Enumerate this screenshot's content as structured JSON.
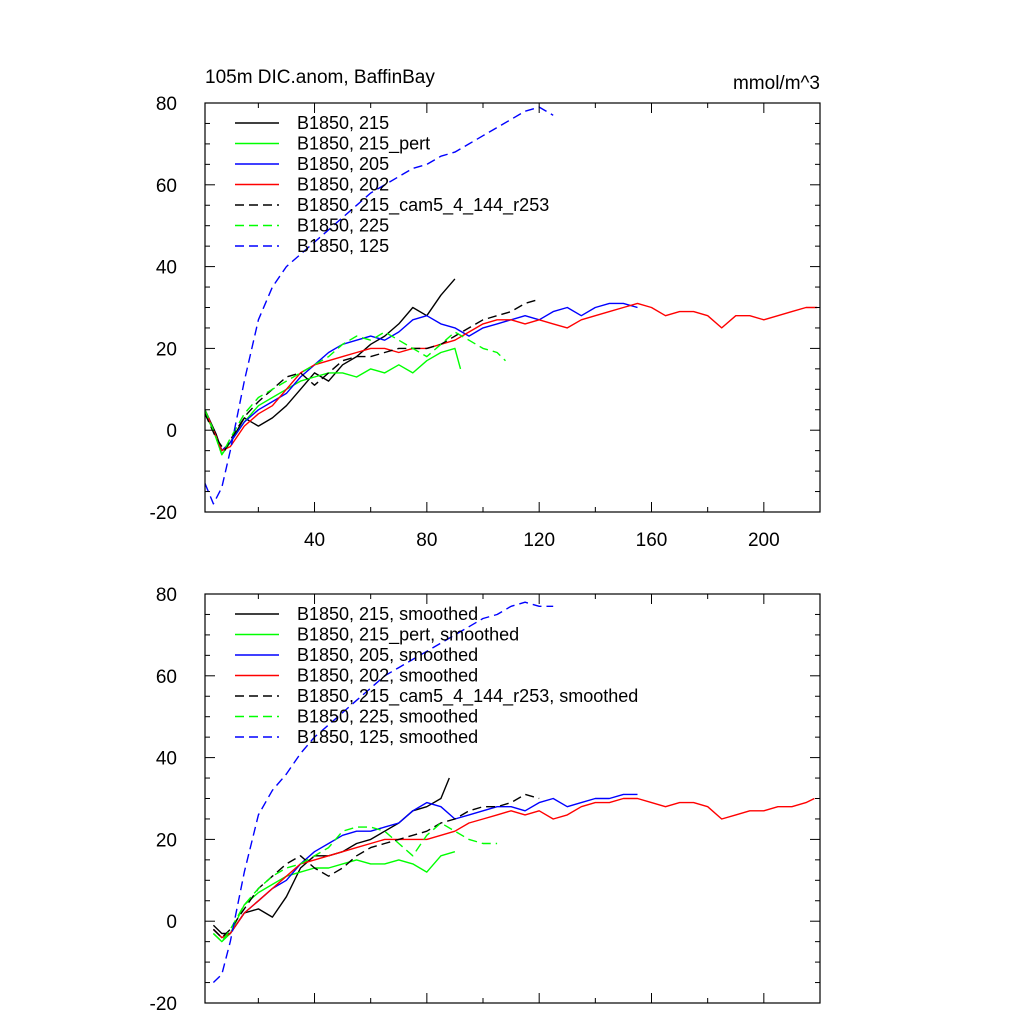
{
  "chart_data": [
    {
      "type": "line",
      "title": "105m DIC.anom, BaffinBay",
      "units": "mmol/m^3",
      "xlim": [
        1,
        220
      ],
      "ylim": [
        -20,
        80
      ],
      "xticks": [
        40,
        80,
        120,
        160,
        200
      ],
      "xtick_labels": [
        "40",
        "80",
        "120",
        "160",
        "200"
      ],
      "yticks": [
        -20,
        0,
        20,
        40,
        60,
        80
      ],
      "ytick_labels": [
        "-20",
        "0",
        "20",
        "40",
        "60",
        "80"
      ],
      "legend_position": "top-left",
      "series": [
        {
          "name": "B1850, 215",
          "color": "#000000",
          "dash": "solid",
          "x": [
            1,
            5,
            7,
            10,
            15,
            20,
            25,
            30,
            35,
            40,
            45,
            50,
            55,
            60,
            65,
            70,
            75,
            80,
            85,
            90
          ],
          "y": [
            5,
            -1,
            -5,
            -3,
            3,
            1,
            3,
            6,
            10,
            14,
            12,
            16,
            18,
            21,
            23,
            26,
            30,
            28,
            33,
            37
          ]
        },
        {
          "name": "B1850, 215_pert",
          "color": "#00ff00",
          "dash": "solid",
          "x": [
            1,
            4,
            7,
            10,
            15,
            20,
            25,
            30,
            35,
            40,
            45,
            50,
            55,
            60,
            65,
            70,
            75,
            80,
            85,
            90,
            92
          ],
          "y": [
            4,
            0,
            -6,
            -3,
            2,
            6,
            8,
            10,
            12,
            13,
            14,
            14,
            13,
            15,
            14,
            16,
            14,
            17,
            19,
            20,
            15
          ]
        },
        {
          "name": "B1850, 205",
          "color": "#0000ff",
          "dash": "solid",
          "x": [
            1,
            4,
            7,
            10,
            15,
            20,
            25,
            30,
            35,
            40,
            45,
            50,
            55,
            60,
            65,
            70,
            75,
            80,
            85,
            90,
            95,
            100,
            105,
            110,
            115,
            120,
            125,
            130,
            135,
            140,
            145,
            150,
            155
          ],
          "y": [
            5,
            0,
            -5,
            -3,
            2,
            5,
            7,
            9,
            13,
            16,
            19,
            21,
            22,
            23,
            22,
            24,
            27,
            28,
            26,
            25,
            23,
            25,
            26,
            27,
            28,
            27,
            29,
            30,
            28,
            30,
            31,
            31,
            30
          ]
        },
        {
          "name": "B1850, 202",
          "color": "#ff0000",
          "dash": "solid",
          "x": [
            1,
            4,
            7,
            10,
            15,
            20,
            25,
            30,
            35,
            40,
            45,
            50,
            55,
            60,
            65,
            70,
            75,
            80,
            85,
            90,
            95,
            100,
            105,
            110,
            115,
            120,
            125,
            130,
            135,
            140,
            145,
            150,
            155,
            160,
            165,
            170,
            175,
            180,
            185,
            190,
            195,
            200,
            205,
            210,
            215,
            219
          ],
          "y": [
            5,
            0,
            -5,
            -4,
            1,
            4,
            6,
            10,
            14,
            16,
            17,
            18,
            19,
            20,
            20,
            19,
            20,
            20,
            21,
            22,
            24,
            26,
            27,
            27,
            26,
            27,
            26,
            25,
            27,
            28,
            29,
            30,
            31,
            30,
            28,
            29,
            29,
            28,
            25,
            28,
            28,
            27,
            28,
            29,
            30,
            30
          ]
        },
        {
          "name": "B1850, 215_cam5_4_144_r253",
          "color": "#000000",
          "dash": "dashed",
          "x": [
            1,
            5,
            8,
            12,
            16,
            20,
            25,
            30,
            35,
            40,
            45,
            50,
            55,
            60,
            65,
            70,
            75,
            80,
            85,
            90,
            95,
            100,
            105,
            110,
            115,
            120
          ],
          "y": [
            4,
            -2,
            -5,
            0,
            4,
            7,
            10,
            13,
            14,
            11,
            14,
            17,
            18,
            18,
            19,
            20,
            20,
            20,
            21,
            23,
            25,
            27,
            28,
            29,
            31,
            32
          ]
        },
        {
          "name": "B1850, 225",
          "color": "#00ff00",
          "dash": "dashed",
          "x": [
            1,
            4,
            7,
            10,
            15,
            20,
            25,
            30,
            35,
            40,
            45,
            50,
            55,
            60,
            65,
            70,
            75,
            80,
            85,
            90,
            95,
            100,
            105,
            108
          ],
          "y": [
            5,
            0,
            -6,
            -2,
            4,
            8,
            10,
            12,
            14,
            16,
            18,
            21,
            23,
            22,
            24,
            22,
            20,
            18,
            21,
            24,
            22,
            20,
            19,
            17
          ]
        },
        {
          "name": "B1850, 125",
          "color": "#0000ff",
          "dash": "dashed",
          "x": [
            1,
            4,
            7,
            10,
            15,
            20,
            25,
            30,
            35,
            40,
            45,
            50,
            55,
            60,
            65,
            70,
            75,
            80,
            85,
            90,
            95,
            100,
            105,
            110,
            115,
            120,
            125
          ],
          "y": [
            -13,
            -18,
            -14,
            -5,
            12,
            27,
            35,
            40,
            43,
            46,
            49,
            52,
            55,
            58,
            60,
            62,
            64,
            65,
            67,
            68,
            70,
            72,
            74,
            76,
            78,
            79,
            77
          ]
        }
      ]
    },
    {
      "type": "line",
      "xlim": [
        1,
        220
      ],
      "ylim": [
        -20,
        80
      ],
      "xticks": [
        40,
        80,
        120,
        160,
        200
      ],
      "yticks": [
        -20,
        0,
        20,
        40,
        60,
        80
      ],
      "ytick_labels": [
        "-20",
        "0",
        "20",
        "40",
        "60",
        "80"
      ],
      "legend_position": "top-left",
      "series": [
        {
          "name": "B1850, 215, smoothed",
          "color": "#000000",
          "dash": "solid",
          "x": [
            4,
            7,
            10,
            15,
            20,
            25,
            30,
            35,
            40,
            45,
            50,
            55,
            60,
            65,
            70,
            75,
            80,
            85,
            88
          ],
          "y": [
            -1,
            -3,
            -3,
            2,
            3,
            1,
            6,
            13,
            16,
            16,
            17,
            19,
            20,
            22,
            24,
            27,
            28,
            30,
            35
          ]
        },
        {
          "name": "B1850, 215_pert, smoothed",
          "color": "#00ff00",
          "dash": "solid",
          "x": [
            4,
            7,
            10,
            15,
            20,
            25,
            30,
            35,
            40,
            45,
            50,
            55,
            60,
            65,
            70,
            75,
            80,
            85,
            90
          ],
          "y": [
            -3,
            -5,
            -3,
            4,
            7,
            9,
            11,
            12,
            13,
            13,
            14,
            15,
            14,
            14,
            15,
            14,
            12,
            16,
            17
          ]
        },
        {
          "name": "B1850, 205, smoothed",
          "color": "#0000ff",
          "dash": "solid",
          "x": [
            4,
            7,
            10,
            15,
            20,
            25,
            30,
            35,
            40,
            45,
            50,
            55,
            60,
            65,
            70,
            75,
            80,
            85,
            90,
            95,
            100,
            105,
            110,
            115,
            120,
            125,
            130,
            135,
            140,
            145,
            150,
            155
          ],
          "y": [
            -2,
            -4,
            -3,
            2,
            5,
            8,
            10,
            14,
            17,
            19,
            21,
            22,
            22,
            23,
            24,
            27,
            29,
            28,
            25,
            26,
            27,
            28,
            28,
            27,
            29,
            30,
            28,
            29,
            30,
            30,
            31,
            31
          ]
        },
        {
          "name": "B1850, 202, smoothed",
          "color": "#ff0000",
          "dash": "solid",
          "x": [
            4,
            7,
            10,
            15,
            20,
            25,
            30,
            35,
            40,
            45,
            50,
            55,
            60,
            65,
            70,
            75,
            80,
            85,
            90,
            95,
            100,
            105,
            110,
            115,
            120,
            125,
            130,
            135,
            140,
            145,
            150,
            155,
            160,
            165,
            170,
            175,
            180,
            185,
            190,
            195,
            200,
            205,
            210,
            215,
            218
          ],
          "y": [
            -2,
            -4,
            -3,
            2,
            5,
            8,
            11,
            14,
            15,
            16,
            17,
            18,
            19,
            20,
            20,
            20,
            20,
            21,
            22,
            24,
            25,
            26,
            27,
            26,
            27,
            25,
            26,
            28,
            29,
            29,
            30,
            30,
            29,
            28,
            29,
            29,
            28,
            25,
            26,
            27,
            27,
            28,
            28,
            29,
            30
          ]
        },
        {
          "name": "B1850, 215_cam5_4_144_r253, smoothed",
          "color": "#000000",
          "dash": "dashed",
          "x": [
            4,
            7,
            10,
            15,
            20,
            25,
            30,
            35,
            40,
            45,
            50,
            55,
            60,
            65,
            70,
            75,
            80,
            85,
            90,
            95,
            100,
            105,
            110,
            115,
            120
          ],
          "y": [
            -2,
            -4,
            -2,
            3,
            8,
            11,
            14,
            16,
            13,
            11,
            13,
            16,
            18,
            19,
            20,
            21,
            22,
            24,
            25,
            27,
            28,
            28,
            29,
            31,
            30
          ]
        },
        {
          "name": "B1850, 225, smoothed",
          "color": "#00ff00",
          "dash": "dashed",
          "x": [
            4,
            7,
            10,
            15,
            20,
            25,
            30,
            35,
            40,
            45,
            50,
            55,
            60,
            65,
            70,
            75,
            80,
            85,
            90,
            95,
            100,
            105
          ],
          "y": [
            -3,
            -5,
            -2,
            4,
            8,
            11,
            13,
            14,
            16,
            18,
            22,
            23,
            23,
            22,
            19,
            16,
            21,
            24,
            22,
            20,
            19,
            19
          ]
        },
        {
          "name": "B1850, 125, smoothed",
          "color": "#0000ff",
          "dash": "dashed",
          "x": [
            4,
            7,
            10,
            15,
            20,
            25,
            30,
            35,
            40,
            45,
            50,
            55,
            60,
            65,
            70,
            75,
            80,
            85,
            90,
            95,
            100,
            105,
            110,
            115,
            120,
            125
          ],
          "y": [
            -15,
            -13,
            -5,
            12,
            26,
            32,
            36,
            41,
            45,
            48,
            51,
            54,
            57,
            60,
            62,
            64,
            66,
            68,
            70,
            72,
            74,
            75,
            77,
            78,
            77,
            77
          ]
        }
      ]
    }
  ]
}
